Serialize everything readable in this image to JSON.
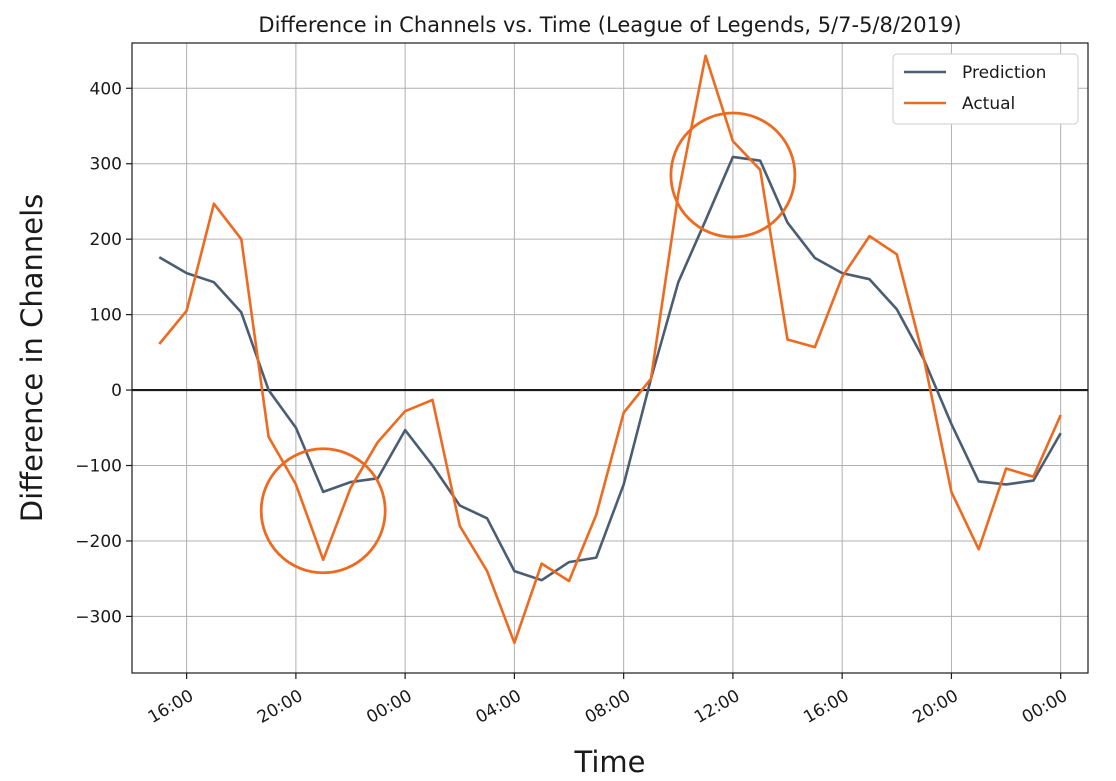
{
  "chart_data": {
    "type": "line",
    "title": "Difference in Channels vs. Time (League of Legends, 5/7-5/8/2019)",
    "xlabel": "Time",
    "ylabel": "Difference in Channels",
    "x_start": "2019-05-07 15:00",
    "x_step": "1 hour",
    "xlim": [
      "2019-05-07 14:00",
      "2019-05-09 01:00"
    ],
    "ylim": [
      -375,
      460
    ],
    "x_ticks": [
      "16:00",
      "20:00",
      "00:00",
      "04:00",
      "08:00",
      "12:00",
      "16:00",
      "20:00",
      "00:00"
    ],
    "y_ticks": [
      400,
      300,
      200,
      100,
      0,
      -100,
      -200,
      -300
    ],
    "y_tick_labels": [
      "400",
      "300",
      "200",
      "100",
      "0",
      "−100",
      "−200",
      "−300"
    ],
    "grid": true,
    "legend_position": "top-right",
    "zero_line": true,
    "series": [
      {
        "name": "Prediction",
        "color": "#4a5d73",
        "values": [
          176,
          155,
          143,
          103,
          0,
          -50,
          -135,
          -122,
          -117,
          -53,
          -100,
          -153,
          -170,
          -240,
          -252,
          -228,
          -222,
          -125,
          15,
          143,
          225,
          309,
          304,
          222,
          175,
          155,
          147,
          107,
          40,
          -45,
          -121,
          -125,
          -120,
          -57
        ]
      },
      {
        "name": "Actual",
        "color": "#ee6a1f",
        "values": [
          61,
          105,
          247,
          200,
          -62,
          -125,
          -225,
          -130,
          -69,
          -28,
          -13,
          -180,
          -240,
          -335,
          -230,
          -253,
          -165,
          -30,
          15,
          260,
          443,
          330,
          292,
          67,
          57,
          150,
          204,
          180,
          40,
          -135,
          -211,
          -104,
          -115,
          -33
        ]
      }
    ],
    "annotations": [
      {
        "shape": "circle",
        "center": [
          "2019-05-07 21:00",
          -160
        ],
        "color": "#ee6a1f"
      },
      {
        "shape": "circle",
        "center": [
          "2019-05-08 12:00",
          285
        ],
        "color": "#ee6a1f"
      }
    ]
  }
}
